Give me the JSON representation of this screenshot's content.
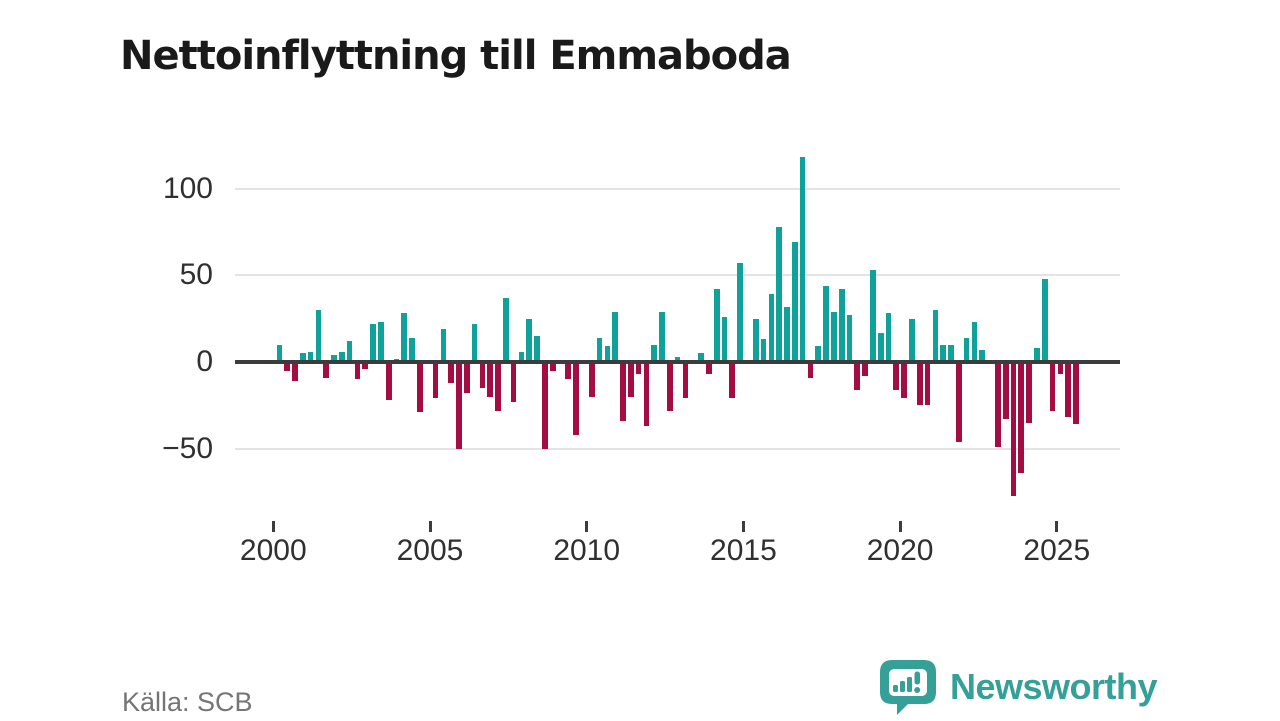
{
  "title": "Nettoinflyttning till Emmaboda",
  "source": "Källa: SCB",
  "logo": {
    "text": "Newsworthy"
  },
  "colors": {
    "positive_bar": "#0EA29A",
    "negative_bar": "#A30D42",
    "gridline": "#E3E3E3",
    "zero_axis": "#3C3C3C",
    "tick_label": "#303030",
    "title": "#1A1A1A",
    "source": "#757575",
    "logo": "#35A098"
  },
  "chart_data": {
    "type": "bar",
    "title": "Nettoinflyttning till Emmaboda",
    "xlabel": "",
    "ylabel": "",
    "x_ticks": [
      2000,
      2005,
      2010,
      2015,
      2020,
      2025
    ],
    "y_ticks": [
      100,
      50,
      0,
      -50
    ],
    "ylim": [
      -85,
      130
    ],
    "grid": "horizontal",
    "legend": "none",
    "series_name": "Nettoinflyttning per kvartal",
    "points": [
      [
        "2000Q1",
        10
      ],
      [
        "2000Q2",
        -5
      ],
      [
        "2000Q3",
        -11
      ],
      [
        "2000Q4",
        5
      ],
      [
        "2001Q1",
        6
      ],
      [
        "2001Q2",
        30
      ],
      [
        "2001Q3",
        -9
      ],
      [
        "2001Q4",
        4
      ],
      [
        "2002Q1",
        6
      ],
      [
        "2002Q2",
        12
      ],
      [
        "2002Q3",
        -10
      ],
      [
        "2002Q4",
        -4
      ],
      [
        "2003Q1",
        22
      ],
      [
        "2003Q2",
        23
      ],
      [
        "2003Q3",
        -22
      ],
      [
        "2003Q4",
        2
      ],
      [
        "2004Q1",
        28
      ],
      [
        "2004Q2",
        14
      ],
      [
        "2004Q3",
        -29
      ],
      [
        "2004Q4",
        0
      ],
      [
        "2005Q1",
        -21
      ],
      [
        "2005Q2",
        19
      ],
      [
        "2005Q3",
        -12
      ],
      [
        "2005Q4",
        -50
      ],
      [
        "2006Q1",
        -18
      ],
      [
        "2006Q2",
        22
      ],
      [
        "2006Q3",
        -15
      ],
      [
        "2006Q4",
        -20
      ],
      [
        "2007Q1",
        -28
      ],
      [
        "2007Q2",
        37
      ],
      [
        "2007Q3",
        -23
      ],
      [
        "2007Q4",
        6
      ],
      [
        "2008Q1",
        25
      ],
      [
        "2008Q2",
        15
      ],
      [
        "2008Q3",
        -50
      ],
      [
        "2008Q4",
        -5
      ],
      [
        "2009Q1",
        0
      ],
      [
        "2009Q2",
        -10
      ],
      [
        "2009Q3",
        -42
      ],
      [
        "2009Q4",
        0
      ],
      [
        "2010Q1",
        -20
      ],
      [
        "2010Q2",
        14
      ],
      [
        "2010Q3",
        9
      ],
      [
        "2010Q4",
        29
      ],
      [
        "2011Q1",
        -34
      ],
      [
        "2011Q2",
        -20
      ],
      [
        "2011Q3",
        -7
      ],
      [
        "2011Q4",
        -37
      ],
      [
        "2012Q1",
        10
      ],
      [
        "2012Q2",
        29
      ],
      [
        "2012Q3",
        -28
      ],
      [
        "2012Q4",
        3
      ],
      [
        "2013Q1",
        -21
      ],
      [
        "2013Q2",
        0
      ],
      [
        "2013Q3",
        5
      ],
      [
        "2013Q4",
        -7
      ],
      [
        "2014Q1",
        42
      ],
      [
        "2014Q2",
        26
      ],
      [
        "2014Q3",
        -21
      ],
      [
        "2014Q4",
        57
      ],
      [
        "2015Q1",
        0
      ],
      [
        "2015Q2",
        25
      ],
      [
        "2015Q3",
        13
      ],
      [
        "2015Q4",
        39
      ],
      [
        "2016Q1",
        78
      ],
      [
        "2016Q2",
        32
      ],
      [
        "2016Q3",
        69
      ],
      [
        "2016Q4",
        118
      ],
      [
        "2017Q1",
        -9
      ],
      [
        "2017Q2",
        9
      ],
      [
        "2017Q3",
        44
      ],
      [
        "2017Q4",
        29
      ],
      [
        "2018Q1",
        42
      ],
      [
        "2018Q2",
        27
      ],
      [
        "2018Q3",
        -16
      ],
      [
        "2018Q4",
        -8
      ],
      [
        "2019Q1",
        53
      ],
      [
        "2019Q2",
        17
      ],
      [
        "2019Q3",
        28
      ],
      [
        "2019Q4",
        -16
      ],
      [
        "2020Q1",
        -21
      ],
      [
        "2020Q2",
        25
      ],
      [
        "2020Q3",
        -25
      ],
      [
        "2020Q4",
        -25
      ],
      [
        "2021Q1",
        30
      ],
      [
        "2021Q2",
        10
      ],
      [
        "2021Q3",
        10
      ],
      [
        "2021Q4",
        -46
      ],
      [
        "2022Q1",
        14
      ],
      [
        "2022Q2",
        23
      ],
      [
        "2022Q3",
        7
      ],
      [
        "2022Q4",
        0
      ],
      [
        "2023Q1",
        -49
      ],
      [
        "2023Q2",
        -33
      ],
      [
        "2023Q3",
        -77
      ],
      [
        "2023Q4",
        -64
      ],
      [
        "2024Q1",
        -35
      ],
      [
        "2024Q2",
        8
      ],
      [
        "2024Q3",
        48
      ],
      [
        "2024Q4",
        -28
      ],
      [
        "2025Q1",
        -7
      ],
      [
        "2025Q2",
        -32
      ],
      [
        "2025Q3",
        -36
      ]
    ]
  }
}
